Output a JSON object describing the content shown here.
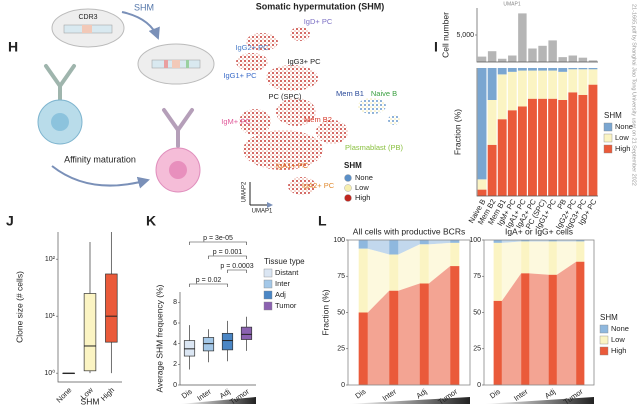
{
  "figure": {
    "panel_labels": {
      "h": "H",
      "i": "I",
      "j": "J",
      "k": "K",
      "l": "L"
    },
    "watermark": "21-1665.pdf by Shanghai Jiao Tong University user on 21 September 2022"
  },
  "diagram": {
    "cdr3": "CDR3",
    "shm": "SHM",
    "affinity_maturation": "Affinity maturation"
  },
  "umap": {
    "title": "Somatic hypermutation (SHM)",
    "top_axis_label": "UMAP1",
    "x_label": "UMAP1",
    "y_label": "UMAP2",
    "clusters": [
      {
        "label": "IgD+ PC",
        "color": "#7b6fc4"
      },
      {
        "label": "IgG2+ PC",
        "color": "#4a7dc8"
      },
      {
        "label": "IgG3+ PC",
        "color": "#222222"
      },
      {
        "label": "IgG1+ PC",
        "color": "#3a6bc8"
      },
      {
        "label": "Mem B1",
        "color": "#2a4a9a"
      },
      {
        "label": "Naive B",
        "color": "#3aa040"
      },
      {
        "label": "PC (SPC)",
        "color": "#222222"
      },
      {
        "label": "Mem B2",
        "color": "#d63a2a"
      },
      {
        "label": "IgM+ PC",
        "color": "#e05a9a"
      },
      {
        "label": "Plasmablast (PB)",
        "color": "#8ac040"
      },
      {
        "label": "IgA1+ PC",
        "color": "#e07020"
      },
      {
        "label": "IgA2+ PC",
        "color": "#e08a30"
      }
    ],
    "legend": {
      "title": "SHM",
      "items": [
        {
          "label": "None",
          "color": "#5b8fc7"
        },
        {
          "label": "Low",
          "color": "#f7efb0"
        },
        {
          "label": "High",
          "color": "#c0261f"
        }
      ]
    }
  },
  "chart_data": [
    {
      "type": "bar",
      "y_label": "Cell number",
      "values": [
        1000,
        2000,
        600,
        1200,
        9000,
        2500,
        3000,
        4000,
        900,
        1200,
        800,
        300
      ],
      "color": "#b5b5b5",
      "ylim": [
        0,
        10000
      ],
      "yticks": [
        {
          "value": 5000,
          "label": "5,000"
        }
      ]
    },
    {
      "type": "stacked_bar",
      "y_label": "Fraction (%)",
      "categories": [
        "Naive B",
        "Mem B2",
        "Mem B1",
        "IgM+ PC",
        "IgA1+ PC",
        "IgA2+ PC",
        "PC (SPC)",
        "IgG1+ PC",
        "PB",
        "IgG2+ PC",
        "IgG3+ PC",
        "IgD+ PC"
      ],
      "series": [
        {
          "name": "None",
          "color": "#7aa6d1",
          "values": [
            87,
            25,
            5,
            3,
            2,
            2,
            2,
            2,
            3,
            1,
            1,
            1
          ]
        },
        {
          "name": "Low",
          "color": "#fbf4c3",
          "values": [
            8,
            35,
            35,
            30,
            28,
            22,
            22,
            22,
            22,
            18,
            20,
            12
          ]
        },
        {
          "name": "High",
          "color": "#ea5a3a",
          "values": [
            5,
            40,
            60,
            67,
            70,
            76,
            76,
            76,
            75,
            81,
            79,
            87
          ]
        }
      ],
      "ylim": [
        0,
        100
      ],
      "legend_title": "SHM",
      "legend": "right"
    },
    {
      "type": "box",
      "y_label": "Clone size (# cells)",
      "x_label": "SHM",
      "categories": [
        "None",
        "Low",
        "High"
      ],
      "colors": [
        "#7aa6d1",
        "#fbf4c3",
        "#ea5a3a"
      ],
      "boxes": [
        {
          "low": 1,
          "q1": 1,
          "median": 1,
          "q3": 1,
          "high": 1
        },
        {
          "low": 1,
          "q1": 1.1,
          "median": 3,
          "q3": 25,
          "high": 200
        },
        {
          "low": 1,
          "q1": 3.5,
          "median": 10,
          "q3": 55,
          "high": 300
        }
      ],
      "log_y": true,
      "ylim": [
        0.7,
        300
      ],
      "yticks": [
        {
          "value": 1,
          "label": "10⁰"
        },
        {
          "value": 10,
          "label": "10¹"
        },
        {
          "value": 100,
          "label": "10²"
        }
      ]
    },
    {
      "type": "box",
      "y_label": "Average SHM frequency (%)",
      "categories": [
        "Dis",
        "Inter",
        "Adj",
        "Tumor"
      ],
      "colors": [
        "#dbe6f3",
        "#a4c8e8",
        "#4a86c5",
        "#8b62b0"
      ],
      "boxes": [
        {
          "low": 1.5,
          "q1": 2.8,
          "median": 3.5,
          "q3": 4.3,
          "high": 5.8
        },
        {
          "low": 2.2,
          "q1": 3.3,
          "median": 4.0,
          "q3": 4.6,
          "high": 5.4
        },
        {
          "low": 2.3,
          "q1": 3.4,
          "median": 4.3,
          "q3": 5.0,
          "high": 6.2
        },
        {
          "low": 3.3,
          "q1": 4.4,
          "median": 4.9,
          "q3": 5.6,
          "high": 6.6
        }
      ],
      "ylim": [
        0,
        9
      ],
      "yticks": [
        0,
        2,
        4,
        6,
        8
      ],
      "annotations": [
        "p = 3e-05",
        "p = 0.001",
        "p = 0.0003",
        "p = 0.02"
      ],
      "legend_title": "Tissue type",
      "legend_labels": [
        "Distant",
        "Inter",
        "Adj",
        "Tumor"
      ],
      "legend": "right"
    },
    {
      "type": "stacked_flow",
      "title": "All cells with productive BCRs",
      "y_label": "Fraction (%)",
      "categories": [
        "Dis",
        "Inter",
        "Adj",
        "Tumor"
      ],
      "series": [
        {
          "color": "#8fb8de",
          "values": [
            6,
            10,
            3,
            2
          ]
        },
        {
          "color": "#fbf4c3",
          "values": [
            44,
            25,
            27,
            16
          ]
        },
        {
          "color": "#ea5a3a",
          "values": [
            50,
            65,
            70,
            82
          ]
        }
      ],
      "ylim": [
        0,
        100
      ],
      "yticks": [
        0,
        25,
        50,
        75,
        100
      ]
    },
    {
      "type": "stacked_flow",
      "title": "IgA+ or IgG+ cells",
      "categories": [
        "Dis",
        "Inter",
        "Adj",
        "Tumor"
      ],
      "series": [
        {
          "name": "None",
          "color": "#8fb8de",
          "values": [
            2,
            1,
            1,
            1
          ]
        },
        {
          "name": "Low",
          "color": "#fbf4c3",
          "values": [
            40,
            22,
            23,
            14
          ]
        },
        {
          "name": "High",
          "color": "#ea5a3a",
          "values": [
            58,
            77,
            76,
            85
          ]
        }
      ],
      "ylim": [
        0,
        100
      ],
      "yticks": [
        0,
        25,
        50,
        75,
        100
      ],
      "legend_title": "SHM",
      "legend": "right"
    }
  ]
}
